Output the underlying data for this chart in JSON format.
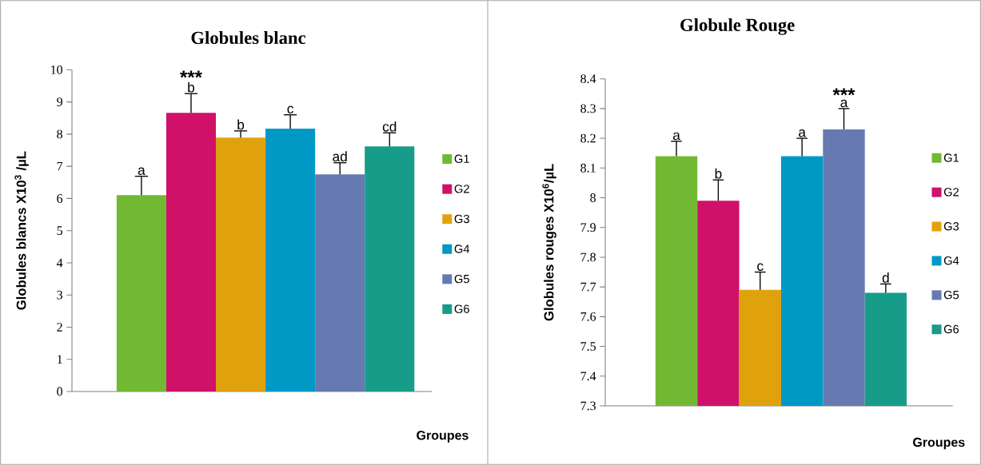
{
  "chart_data": [
    {
      "type": "bar",
      "title": "Globules blanc",
      "ylabel": "Globules blancs X10$^{3}$ /µL",
      "xlabel": "Groupes",
      "categories": [
        null
      ],
      "legend": "right",
      "ylim": [
        0,
        10
      ],
      "yticks": [
        0,
        1,
        2,
        3,
        4,
        5,
        6,
        7,
        8,
        9,
        10
      ],
      "series": [
        {
          "name": "G1",
          "color": "#72b933",
          "values": [
            6.1
          ],
          "errors": [
            [
              6.1,
              6.69
            ]
          ]
        },
        {
          "name": "G2",
          "color": "#cf1169",
          "values": [
            8.66
          ],
          "errors": [
            [
              8.66,
              9.26
            ]
          ]
        },
        {
          "name": "G3",
          "color": "#e0a20c",
          "values": [
            7.89
          ],
          "errors": [
            [
              7.89,
              8.1
            ]
          ]
        },
        {
          "name": "G4",
          "color": "#0099c6",
          "values": [
            8.17
          ],
          "errors": [
            [
              8.17,
              8.6
            ]
          ]
        },
        {
          "name": "G5",
          "color": "#6679b1",
          "values": [
            6.75
          ],
          "errors": [
            [
              6.75,
              7.11
            ]
          ]
        },
        {
          "name": "G6",
          "color": "#179c8a",
          "values": [
            7.62
          ],
          "errors": [
            [
              7.62,
              8.04
            ]
          ]
        }
      ],
      "annotations": [
        "a",
        "b",
        "b",
        "c",
        "ad",
        "cd",
        "***"
      ]
    },
    {
      "type": "bar",
      "title": "Globule Rouge",
      "ylabel": "Globules rouges X10$^{6}$/µL",
      "xlabel": "Groupes",
      "categories": [
        null
      ],
      "legend": "right",
      "ylim": [
        7.3,
        8.4
      ],
      "yticks": [
        7.3,
        7.4,
        7.5,
        7.6,
        7.7,
        7.8,
        7.9,
        8,
        8.1,
        8.2,
        8.3,
        8.4
      ],
      "series": [
        {
          "name": "G1",
          "color": "#72b933",
          "values": [
            8.14
          ],
          "errors": [
            [
              8.14,
              8.19
            ]
          ]
        },
        {
          "name": "G2",
          "color": "#cf1169",
          "values": [
            7.99
          ],
          "errors": [
            [
              7.99,
              8.06
            ]
          ]
        },
        {
          "name": "G3",
          "color": "#e0a20c",
          "values": [
            7.69
          ],
          "errors": [
            [
              7.69,
              7.75
            ]
          ]
        },
        {
          "name": "G4",
          "color": "#0099c6",
          "values": [
            8.14
          ],
          "errors": [
            [
              8.14,
              8.2
            ]
          ]
        },
        {
          "name": "G5",
          "color": "#6679b1",
          "values": [
            8.23
          ],
          "errors": [
            [
              8.23,
              8.3
            ]
          ]
        },
        {
          "name": "G6",
          "color": "#179c8a",
          "values": [
            7.68
          ],
          "errors": [
            [
              7.68,
              7.71
            ]
          ]
        }
      ],
      "annotations": [
        "a",
        "b",
        "c",
        "a",
        "a",
        "d",
        "***"
      ]
    }
  ]
}
